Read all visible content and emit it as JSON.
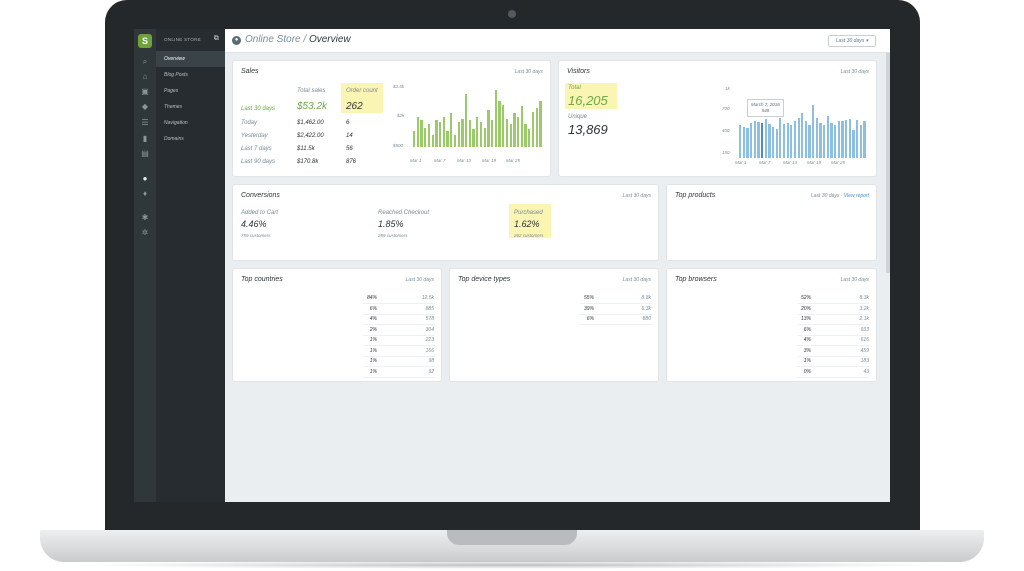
{
  "header": {
    "breadcrumb_parent": "Online Store",
    "breadcrumb_sep": " / ",
    "breadcrumb_current": "Overview",
    "date_range_button": "Last 30 days ▾"
  },
  "nav": {
    "section_title": "ONLINE STORE",
    "items": [
      "Overview",
      "Blog Posts",
      "Pages",
      "Themes",
      "Navigation",
      "Domains"
    ],
    "active": "Overview"
  },
  "rail_icons": [
    "search-icon",
    "home-icon",
    "orders-icon",
    "tag-icon",
    "customers-icon",
    "reports-icon",
    "discounts-icon",
    "online-store-icon",
    "location-icon",
    "apps-icon",
    "settings-icon"
  ],
  "sales": {
    "title": "Sales",
    "range": "Last 30 days",
    "col_total": "Total sales",
    "col_orders": "Order count",
    "rows": [
      {
        "label": "Last 30 days",
        "total": "$53.2k",
        "orders": "262"
      },
      {
        "label": "Today",
        "total": "$1,462.00",
        "orders": "6"
      },
      {
        "label": "Yesterday",
        "total": "$2,422.00",
        "orders": "14"
      },
      {
        "label": "Last 7 days",
        "total": "$11.5k",
        "orders": "56"
      },
      {
        "label": "Last 90 days",
        "total": "$170.8k",
        "orders": "876"
      }
    ]
  },
  "visitors": {
    "title": "Visitors",
    "range": "Last 30 days",
    "total_label": "Total",
    "total_value": "16,205",
    "unique_label": "Unique",
    "unique_value": "13,869",
    "tooltip_date": "March 7, 2016",
    "tooltip_value": "548"
  },
  "conversions": {
    "title": "Conversions",
    "range": "Last 30 days",
    "steps": [
      {
        "label": "Added to Cart",
        "pct": "4.46%",
        "sub": "759 customers"
      },
      {
        "label": "Reached Checkout",
        "pct": "1.85%",
        "sub": "289 customers"
      },
      {
        "label": "Purchased",
        "pct": "1.62%",
        "sub": "262 customers"
      }
    ]
  },
  "top_products": {
    "title": "Top products",
    "range": "Last 30 days",
    "sep": " · ",
    "link": "View report"
  },
  "top_countries": {
    "title": "Top countries",
    "range": "Last 30 days",
    "rows": [
      {
        "pct": "84%",
        "val": "12.5k"
      },
      {
        "pct": "6%",
        "val": "885"
      },
      {
        "pct": "4%",
        "val": "578"
      },
      {
        "pct": "2%",
        "val": "304"
      },
      {
        "pct": "1%",
        "val": "223"
      },
      {
        "pct": "1%",
        "val": "166"
      },
      {
        "pct": "1%",
        "val": "98"
      },
      {
        "pct": "1%",
        "val": "92"
      }
    ]
  },
  "top_devices": {
    "title": "Top device types",
    "range": "Last 30 days",
    "rows": [
      {
        "pct": "55%",
        "val": "8.8k"
      },
      {
        "pct": "39%",
        "val": "6.3k"
      },
      {
        "pct": "6%",
        "val": "880"
      }
    ]
  },
  "top_browsers": {
    "title": "Top browsers",
    "range": "Last 30 days",
    "rows": [
      {
        "pct": "52%",
        "val": "8.3k"
      },
      {
        "pct": "20%",
        "val": "3.2k"
      },
      {
        "pct": "13%",
        "val": "2.1k"
      },
      {
        "pct": "6%",
        "val": "933"
      },
      {
        "pct": "4%",
        "val": "616"
      },
      {
        "pct": "3%",
        "val": "459"
      },
      {
        "pct": "1%",
        "val": "183"
      },
      {
        "pct": "0%",
        "val": "43"
      }
    ]
  },
  "chart_data": [
    {
      "type": "bar",
      "title": "Sales",
      "yticks": [
        "$3.5k",
        "$2k",
        "$500"
      ],
      "ylim": [
        0,
        3500
      ],
      "xticks": [
        "Mar 1",
        "Mar 7",
        "Mar 13",
        "Mar 19",
        "Mar 25"
      ],
      "color": "#9cc96b",
      "values": [
        900,
        1700,
        1500,
        1100,
        1300,
        700,
        1500,
        1400,
        1700,
        900,
        1900,
        700,
        1400,
        1600,
        3000,
        1500,
        1000,
        1700,
        1400,
        1100,
        2100,
        1500,
        3200,
        2600,
        2400,
        1600,
        1300,
        1900,
        1700,
        2300,
        1300,
        1000,
        2000,
        2200,
        2600
      ]
    },
    {
      "type": "bar",
      "title": "Visitors",
      "yticks": [
        "1k",
        "700",
        "400",
        "150"
      ],
      "ylim": [
        0,
        1000
      ],
      "xticks": [
        "Mar 1",
        "Mar 7",
        "Mar 13",
        "Mar 19",
        "Mar 25"
      ],
      "color": "#8fbfe0",
      "highlight_color": "#4a8cc4",
      "highlight_index": 6,
      "values": [
        520,
        500,
        470,
        560,
        580,
        570,
        548,
        620,
        540,
        500,
        460,
        630,
        540,
        560,
        520,
        590,
        640,
        720,
        580,
        520,
        840,
        640,
        560,
        520,
        660,
        560,
        530,
        580,
        590,
        600,
        620,
        440,
        600,
        520,
        580
      ]
    }
  ]
}
